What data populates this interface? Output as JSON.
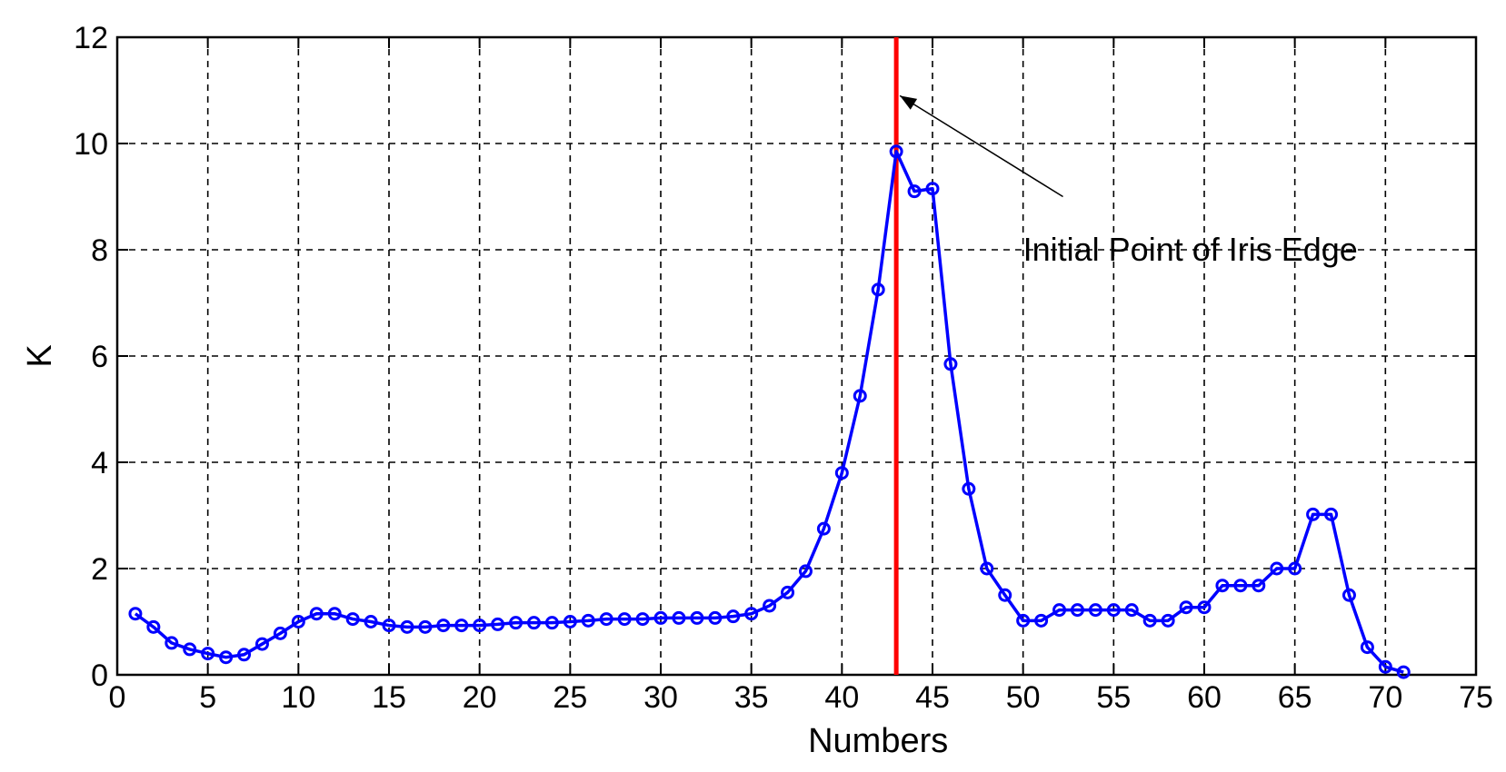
{
  "chart_data": {
    "type": "line",
    "title": "",
    "xlabel": "Numbers",
    "ylabel": "K",
    "xlim": [
      0,
      75
    ],
    "ylim": [
      0,
      12
    ],
    "xticks": [
      0,
      5,
      10,
      15,
      20,
      25,
      30,
      35,
      40,
      45,
      50,
      55,
      60,
      65,
      70,
      75
    ],
    "yticks": [
      0,
      2,
      4,
      6,
      8,
      10,
      12
    ],
    "grid": true,
    "grid_style": "dashed",
    "series": [
      {
        "color": "#0000ff",
        "marker": "circle",
        "x": [
          1,
          2,
          3,
          4,
          5,
          6,
          7,
          8,
          9,
          10,
          11,
          12,
          13,
          14,
          15,
          16,
          17,
          18,
          19,
          20,
          21,
          22,
          23,
          24,
          25,
          26,
          27,
          28,
          29,
          30,
          31,
          32,
          33,
          34,
          35,
          36,
          37,
          38,
          39,
          40,
          41,
          42,
          43,
          44,
          45,
          46,
          47,
          48,
          49,
          50,
          51,
          52,
          53,
          54,
          55,
          56,
          57,
          58,
          59,
          60,
          61,
          62,
          63,
          64,
          65,
          66,
          67,
          68,
          69,
          70,
          71
        ],
        "values": [
          1.15,
          0.9,
          0.6,
          0.48,
          0.4,
          0.33,
          0.38,
          0.58,
          0.78,
          1.0,
          1.15,
          1.15,
          1.05,
          1.0,
          0.93,
          0.9,
          0.9,
          0.93,
          0.93,
          0.93,
          0.95,
          0.98,
          0.98,
          0.98,
          1.0,
          1.02,
          1.05,
          1.05,
          1.05,
          1.07,
          1.07,
          1.07,
          1.07,
          1.1,
          1.15,
          1.3,
          1.55,
          1.95,
          2.75,
          3.8,
          5.25,
          7.25,
          9.85,
          9.1,
          9.15,
          5.85,
          3.5,
          2.0,
          1.5,
          1.02,
          1.02,
          1.22,
          1.22,
          1.22,
          1.22,
          1.22,
          1.02,
          1.02,
          1.27,
          1.27,
          1.68,
          1.68,
          1.68,
          2.0,
          2.0,
          3.02,
          3.02,
          1.5,
          0.52,
          0.15,
          0.05
        ]
      }
    ],
    "vertical_line": {
      "x": 43,
      "color": "#ff0000"
    },
    "annotations": [
      {
        "text": "Initial Point of Iris Edge",
        "x": 50.5,
        "y": 8.0,
        "arrow_to_x": 43.2,
        "arrow_to_y": 10.9,
        "arrow_from_x": 52.2,
        "arrow_from_y": 9.0
      }
    ]
  }
}
